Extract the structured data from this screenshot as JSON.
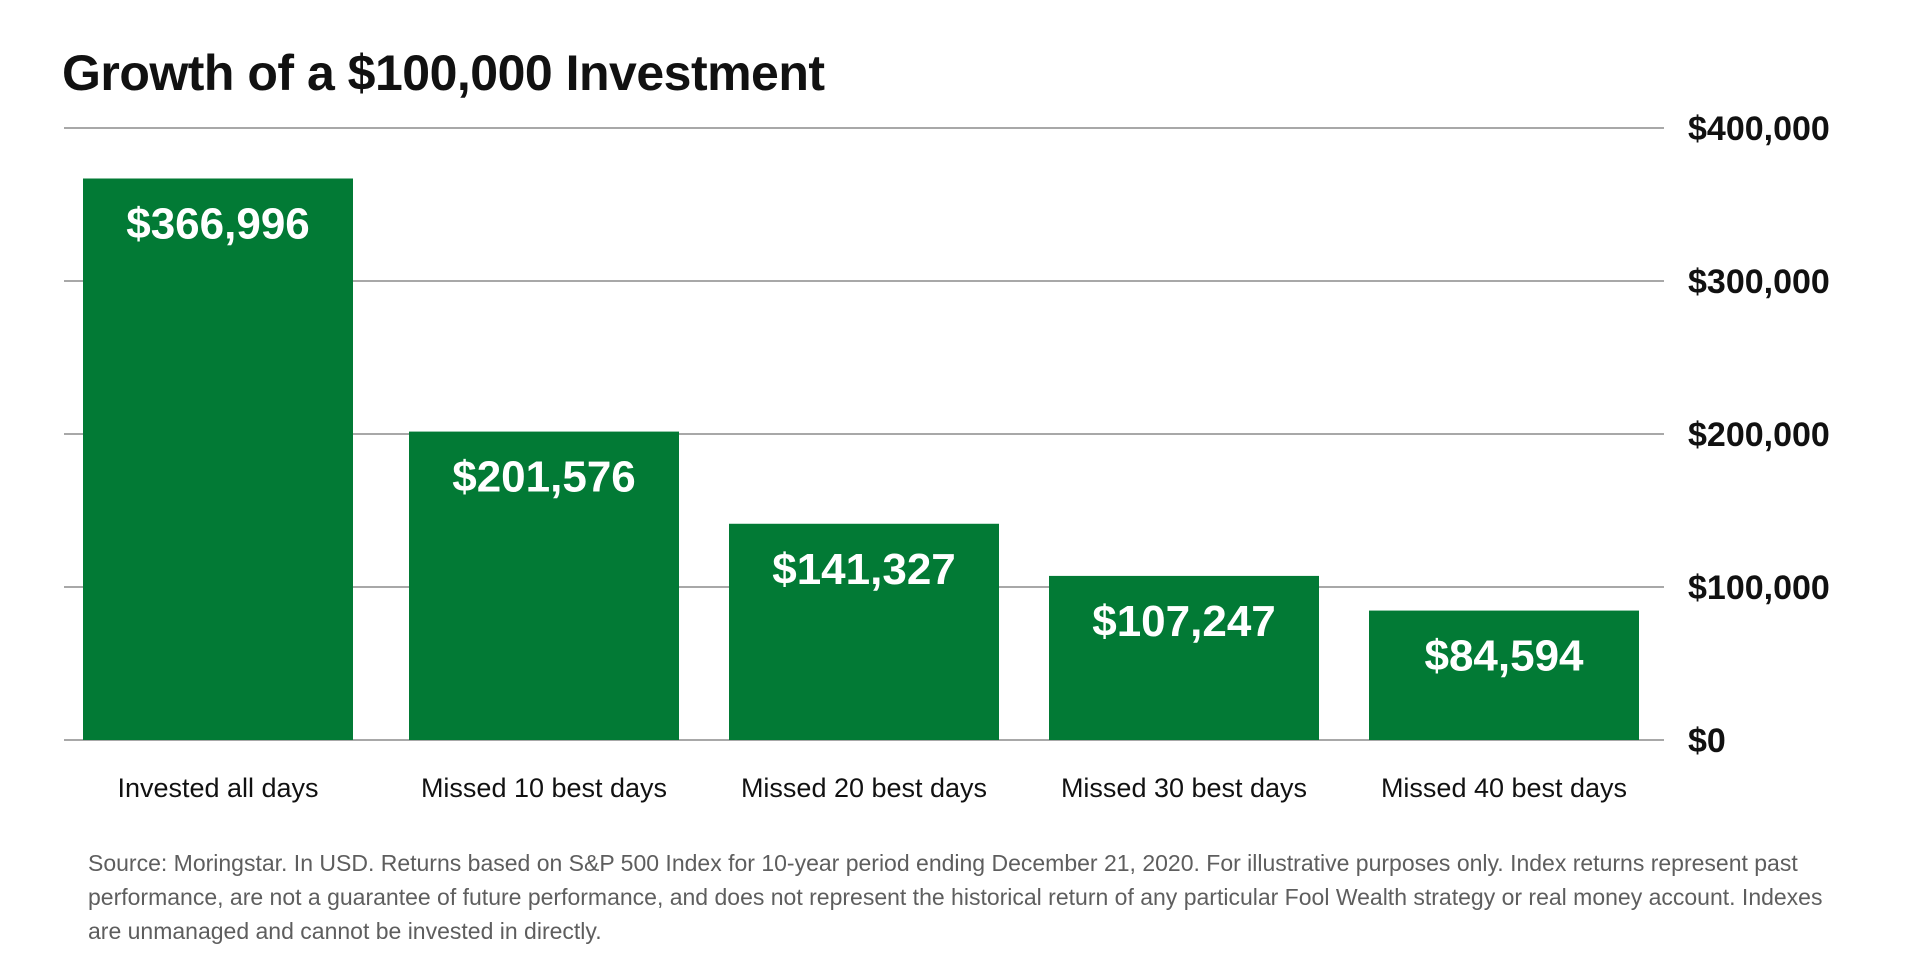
{
  "chart_data": {
    "type": "bar",
    "title": "Growth of a $100,000 Investment",
    "xlabel": "",
    "ylabel": "",
    "categories": [
      "Invested all days",
      "Missed 10 best days",
      "Missed 20 best days",
      "Missed 30 best days",
      "Missed 40 best days"
    ],
    "values": [
      366996,
      201576,
      141327,
      107247,
      84594
    ],
    "data_labels": [
      "$366,996",
      "$201,576",
      "$141,327",
      "$107,247",
      "$84,594"
    ],
    "ylim": [
      0,
      400000
    ],
    "y_ticks": [
      0,
      100000,
      200000,
      300000,
      400000
    ],
    "y_tick_labels": [
      "$0",
      "$100,000",
      "$200,000",
      "$300,000",
      "$400,000"
    ],
    "y_axis_side": "right",
    "grid": true,
    "legend": "none",
    "bar_color": "#027a35"
  },
  "footnote": "Source: Moringstar. In USD. Returns based on S&P 500 Index for 10-year period ending December 21, 2020. For illustrative purposes only. Index returns represent past performance, are not a guarantee of future performance, and does not represent the historical return of any particular Fool Wealth strategy or real money account. Indexes are unmanaged and cannot be invested in directly."
}
